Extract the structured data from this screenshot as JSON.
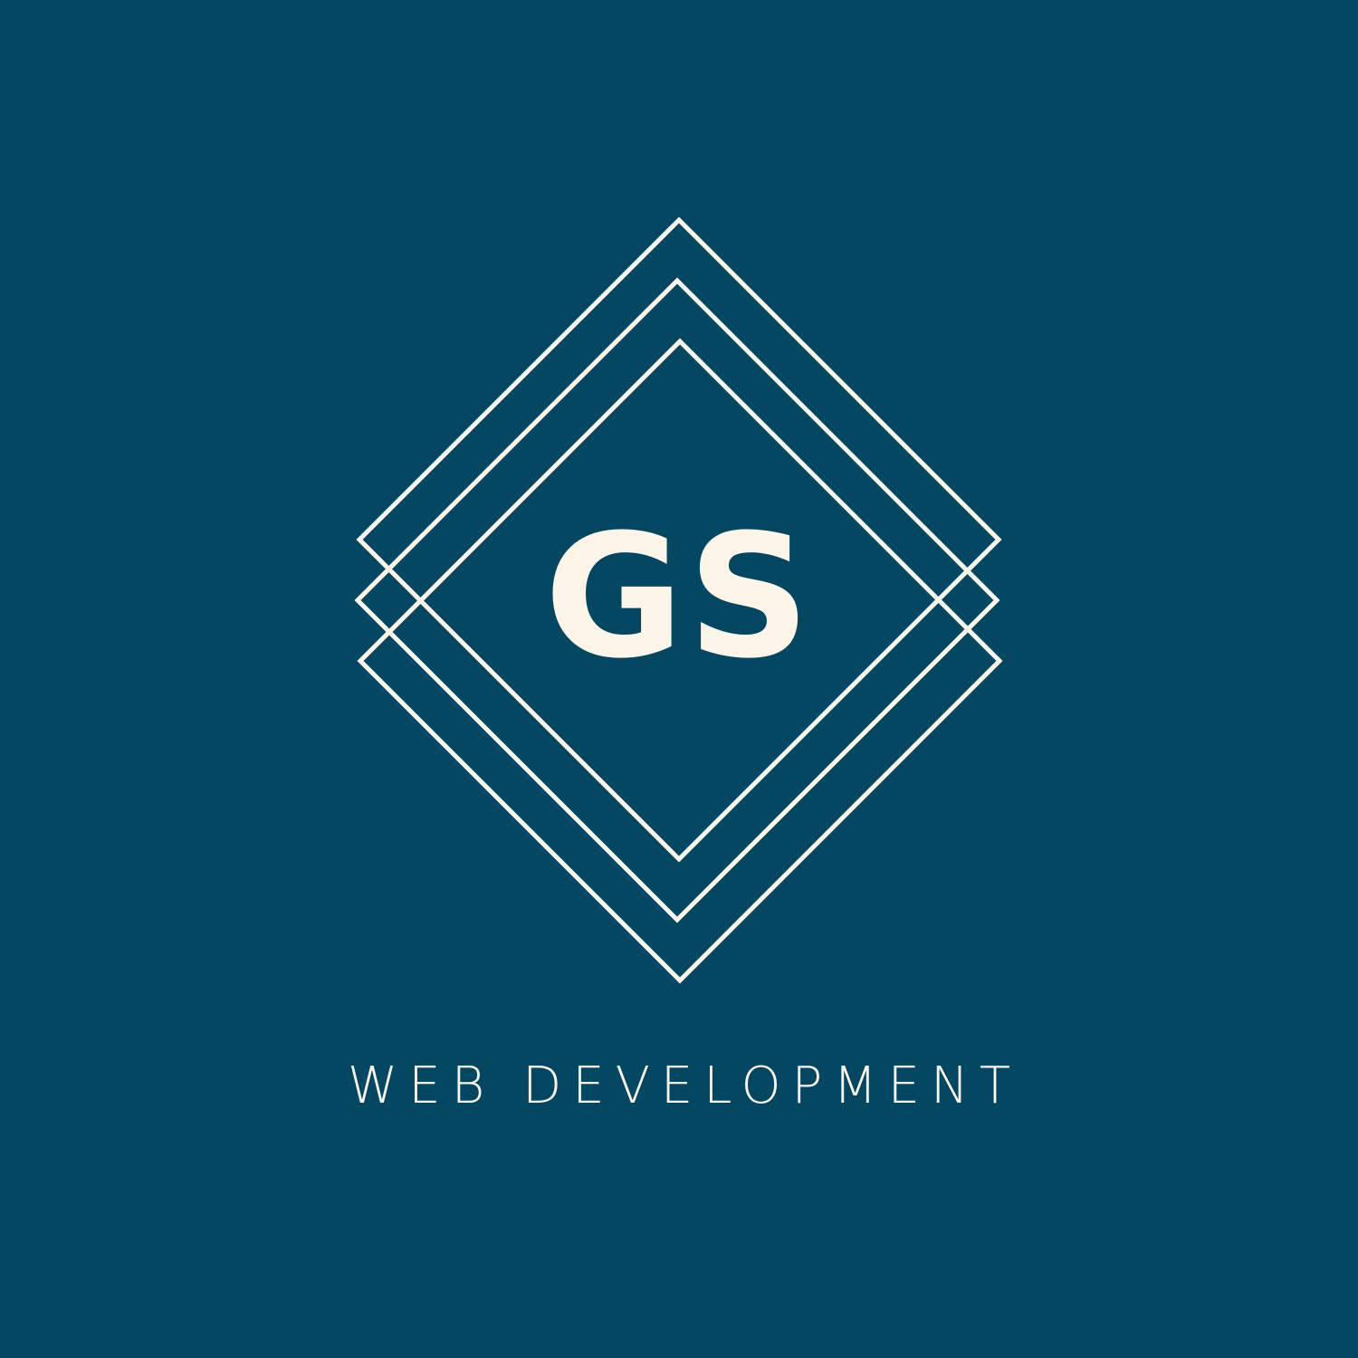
{
  "logo": {
    "monogram": "GS",
    "tagline": "WEB DEVELOPMENT",
    "icon": "layered-diamond-icon"
  },
  "colors": {
    "background": "#044762",
    "foreground": "#FDF5E8"
  }
}
